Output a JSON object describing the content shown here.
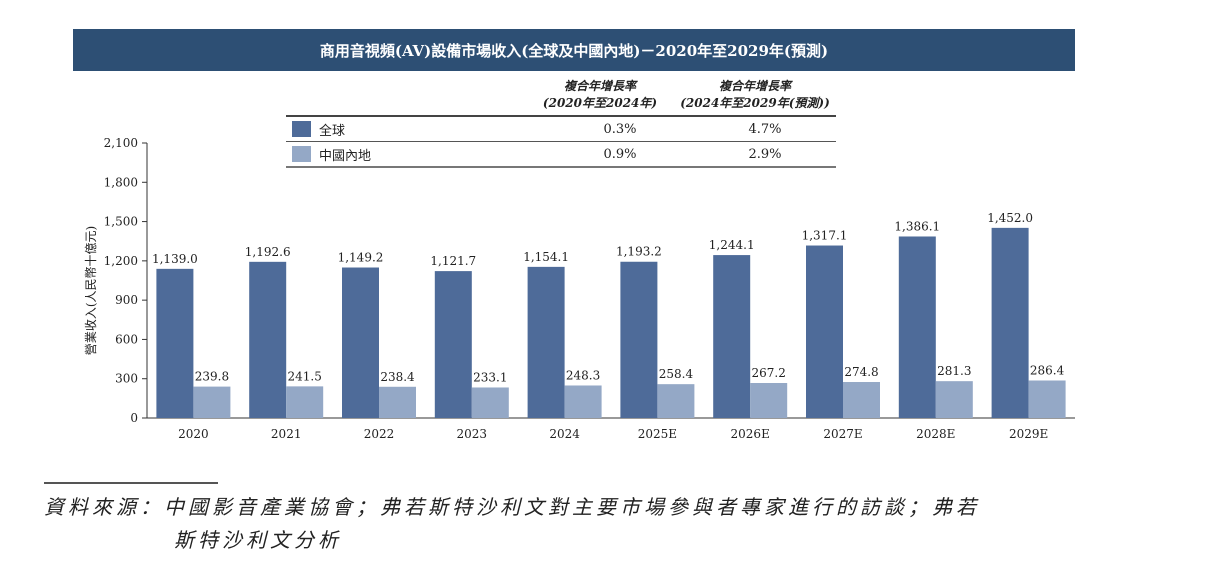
{
  "chart_data": {
    "type": "bar",
    "title": "商用音視頻(AV)設備市場收入(全球及中國內地)－2020年至2029年(預測)",
    "ylabel": "營業收入(人民幣十億元)",
    "xlabel": "",
    "ylim": [
      0,
      2100
    ],
    "yticks": [
      0,
      300,
      600,
      900,
      1200,
      1500,
      1800,
      2100
    ],
    "ytick_labels": [
      "0",
      "300",
      "600",
      "900",
      "1,200",
      "1,500",
      "1,800",
      "2,100"
    ],
    "grid": false,
    "categories": [
      "2020",
      "2021",
      "2022",
      "2023",
      "2024",
      "2025E",
      "2026E",
      "2027E",
      "2028E",
      "2029E"
    ],
    "series": [
      {
        "name": "全球",
        "color": "#4e6b99",
        "values": [
          1139.0,
          1192.6,
          1149.2,
          1121.7,
          1154.1,
          1193.2,
          1244.1,
          1317.1,
          1386.1,
          1452.0
        ],
        "labels": [
          "1,139.0",
          "1,192.6",
          "1,149.2",
          "1,121.7",
          "1,154.1",
          "1,193.2",
          "1,244.1",
          "1,317.1",
          "1,386.1",
          "1,452.0"
        ]
      },
      {
        "name": "中國內地",
        "color": "#94a8c6",
        "values": [
          239.8,
          241.5,
          238.4,
          233.1,
          248.3,
          258.4,
          267.2,
          274.8,
          281.3,
          286.4
        ],
        "labels": [
          "239.8",
          "241.5",
          "238.4",
          "233.1",
          "248.3",
          "258.4",
          "267.2",
          "274.8",
          "281.3",
          "286.4"
        ]
      }
    ],
    "cagr_table": {
      "headers": [
        {
          "line1": "複合年增長率",
          "line2": "(2020年至2024年)"
        },
        {
          "line1": "複合年增長率",
          "line2": "(2024年至2029年(預測))"
        }
      ],
      "rows": [
        {
          "name": "全球",
          "v1": "0.3%",
          "v2": "4.7%"
        },
        {
          "name": "中國內地",
          "v1": "0.9%",
          "v2": "2.9%"
        }
      ]
    }
  },
  "source": {
    "line1": "資料來源：中國影音產業協會；弗若斯特沙利文對主要市場參與者專家進行的訪談；弗若",
    "line2": "斯特沙利文分析"
  },
  "header_color": "#2d4f74"
}
